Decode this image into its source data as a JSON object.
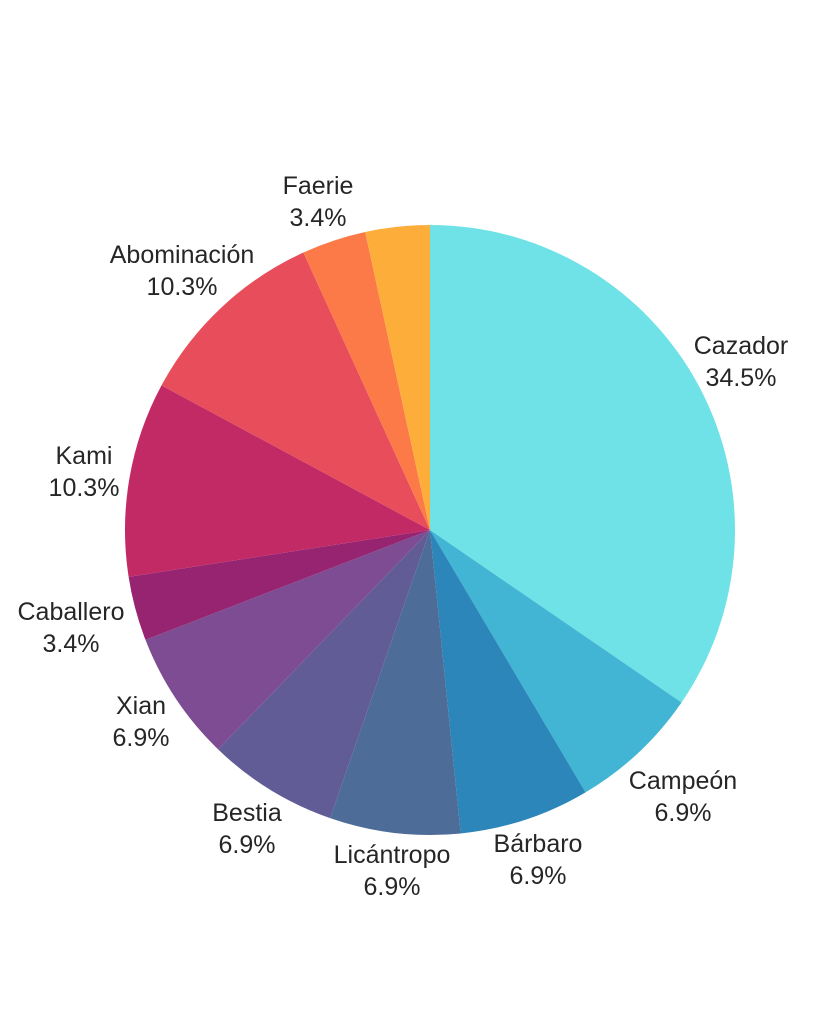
{
  "chart_data": {
    "type": "pie",
    "title": "",
    "background": "#FFFFFF",
    "label_text_color": "#262626",
    "start_angle_deg": 0,
    "direction": "clockwise",
    "legend_position": "none",
    "slices": [
      {
        "name": "Cazador",
        "pct": "34.5%",
        "value": 34.5,
        "color": "#6EE2E6",
        "label_visible": true
      },
      {
        "name": "Campeón",
        "pct": "6.9%",
        "value": 6.9,
        "color": "#41B5D3",
        "label_visible": true
      },
      {
        "name": "Bárbaro",
        "pct": "6.9%",
        "value": 6.9,
        "color": "#2C86B9",
        "label_visible": true
      },
      {
        "name": "Licántropo",
        "pct": "6.9%",
        "value": 6.9,
        "color": "#4E6C98",
        "label_visible": true
      },
      {
        "name": "Bestia",
        "pct": "6.9%",
        "value": 6.9,
        "color": "#625C96",
        "label_visible": true
      },
      {
        "name": "Xian",
        "pct": "6.9%",
        "value": 6.9,
        "color": "#7D4C92",
        "label_visible": true
      },
      {
        "name": "Caballero",
        "pct": "3.4%",
        "value": 3.4,
        "color": "#962471",
        "label_visible": true
      },
      {
        "name": "Kami",
        "pct": "10.3%",
        "value": 10.3,
        "color": "#C22A65",
        "label_visible": true
      },
      {
        "name": "Abominación",
        "pct": "10.3%",
        "value": 10.3,
        "color": "#E84D5B",
        "label_visible": true
      },
      {
        "name": "Faerie",
        "pct": "3.4%",
        "value": 3.4,
        "color": "#FC7A47",
        "label_visible": true
      },
      {
        "name": "",
        "pct": "",
        "value": 3.4,
        "color": "#FDAE3A",
        "label_visible": false
      }
    ]
  }
}
